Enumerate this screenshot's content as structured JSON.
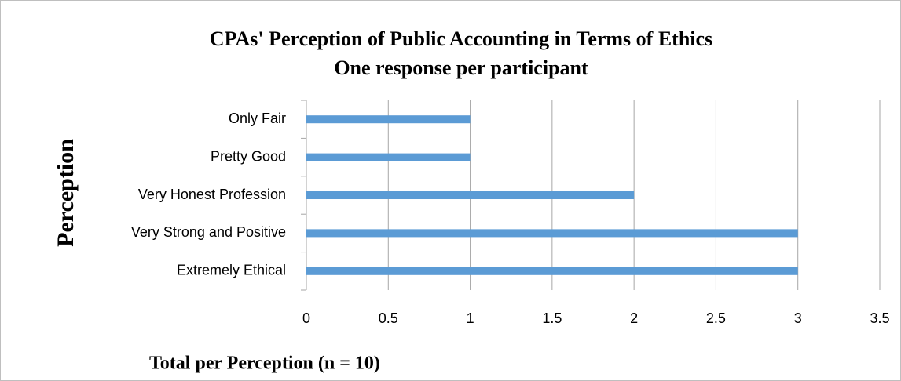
{
  "chart_data": {
    "type": "bar",
    "orientation": "horizontal",
    "title": "CPAs' Perception of Public Accounting in Terms of Ethics",
    "subtitle": "One response per participant",
    "y_label": "Perception",
    "x_label": "Total per Perception (n = 10)",
    "categories": [
      "Extremely Ethical",
      "Very Strong and Positive",
      "Very Honest Profession",
      "Pretty Good",
      "Only Fair"
    ],
    "values": [
      3,
      3,
      2,
      1,
      1
    ],
    "color": "#5b9bd5",
    "xlim": [
      0,
      3.5
    ],
    "xticks": [
      0,
      0.5,
      1,
      1.5,
      2,
      2.5,
      3,
      3.5
    ],
    "grid": true
  }
}
